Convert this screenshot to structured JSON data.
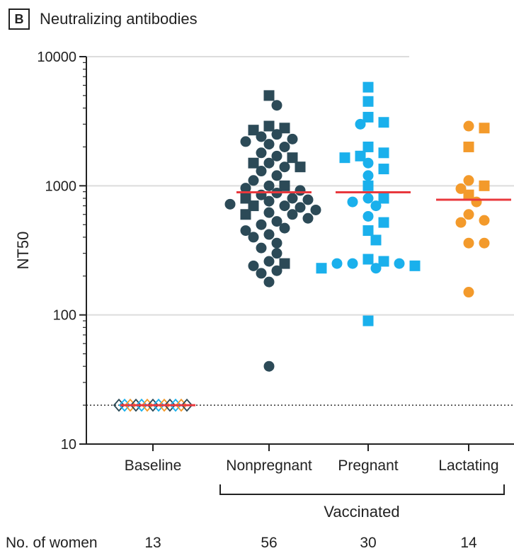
{
  "panel": {
    "letter": "B",
    "title": "Neutralizing antibodies"
  },
  "chart_data": {
    "type": "scatter",
    "title": "Neutralizing antibodies",
    "ylabel": "NT50",
    "yscale": "log",
    "ylim": [
      10,
      10000
    ],
    "yticks": [
      10,
      100,
      1000,
      10000
    ],
    "ytick_labels": [
      "10",
      "100",
      "1000",
      "10000"
    ],
    "limit_of_detection": 20,
    "grid": "horizontal at decades",
    "categories": [
      "Baseline",
      "Nonpregnant",
      "Pregnant",
      "Lactating"
    ],
    "group_label": "Vaccinated",
    "counts_label": "No. of women",
    "counts": [
      "13",
      "56",
      "30",
      "14"
    ],
    "median_color": "#e8383d",
    "series": [
      {
        "category": "Baseline",
        "marker": "diamond-open",
        "colors": [
          "#2c4a57",
          "#1ab0ec",
          "#f39a2b"
        ],
        "median": 20,
        "points": [
          20,
          20,
          20,
          20,
          20,
          20,
          20,
          20,
          20,
          20,
          20,
          20,
          20
        ]
      },
      {
        "category": "Nonpregnant",
        "color": "#2c4a57",
        "median": 890,
        "circles": [
          4200,
          2500,
          2400,
          2300,
          2200,
          2100,
          2000,
          1800,
          1700,
          1500,
          1400,
          1300,
          1200,
          1100,
          1000,
          960,
          920,
          880,
          850,
          800,
          780,
          760,
          720,
          700,
          680,
          650,
          620,
          600,
          560,
          530,
          500,
          470,
          450,
          420,
          400,
          360,
          330,
          300,
          260,
          240,
          220,
          210,
          180,
          40
        ],
        "squares": [
          5000,
          2900,
          2800,
          2700,
          1650,
          1500,
          1400,
          1000,
          800,
          700,
          600,
          250
        ]
      },
      {
        "category": "Pregnant",
        "color": "#1ab0ec",
        "median": 890,
        "circles": [
          3000,
          1500,
          1200,
          800,
          750,
          700,
          580,
          250,
          230,
          250,
          250
        ],
        "squares": [
          5800,
          4500,
          3400,
          3100,
          2000,
          1800,
          1700,
          1650,
          1350,
          1000,
          520,
          450,
          380,
          270,
          260,
          240,
          230,
          90,
          800
        ]
      },
      {
        "category": "Lactating",
        "color": "#f39a2b",
        "median": 780,
        "circles": [
          2900,
          1100,
          950,
          750,
          600,
          540,
          520,
          360,
          360,
          150
        ],
        "squares": [
          2800,
          2000,
          1000,
          850
        ]
      }
    ]
  }
}
